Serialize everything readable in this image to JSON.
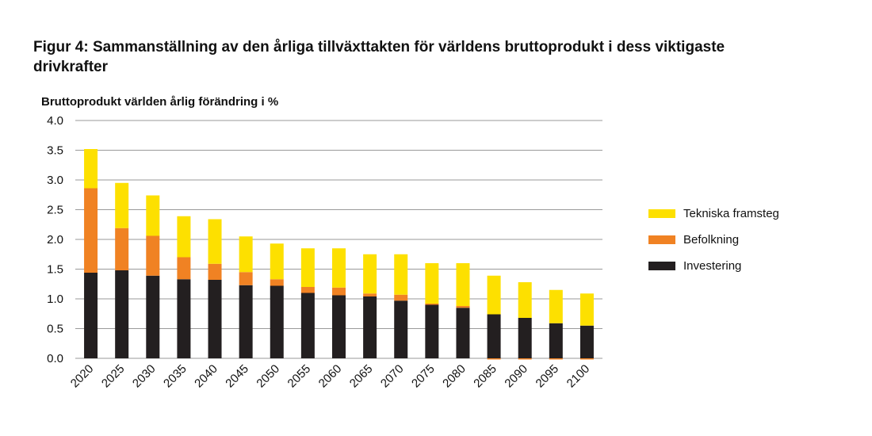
{
  "title": "Figur 4: Sammanställning av den årliga tillväxttakten för världens bruttoprodukt i dess viktigaste drivkrafter",
  "chart_data": {
    "type": "bar",
    "stacked": true,
    "ylabel": "Bruttoprodukt världen årlig förändring i %",
    "xlabel": "",
    "ylim": [
      0,
      4.0
    ],
    "yticks": [
      "0.0",
      "0.5",
      "1.0",
      "1.5",
      "2.0",
      "2.5",
      "3.0",
      "3.5",
      "4.0"
    ],
    "grid": true,
    "legend_position": "right",
    "categories": [
      "2020",
      "2025",
      "2030",
      "2035",
      "2040",
      "2045",
      "2050",
      "2055",
      "2060",
      "2065",
      "2070",
      "2075",
      "2080",
      "2085",
      "2090",
      "2095",
      "2100"
    ],
    "series": [
      {
        "name": "Investering",
        "color": "#231f20",
        "values": [
          1.44,
          1.48,
          1.39,
          1.33,
          1.32,
          1.23,
          1.22,
          1.1,
          1.06,
          1.04,
          0.97,
          0.9,
          0.85,
          0.74,
          0.68,
          0.59,
          0.55
        ]
      },
      {
        "name": "Befolkning",
        "color": "#f08223",
        "values": [
          1.42,
          0.71,
          0.67,
          0.37,
          0.27,
          0.22,
          0.11,
          0.1,
          0.13,
          0.05,
          0.1,
          0.02,
          0.03,
          -0.01,
          -0.01,
          -0.02,
          -0.02
        ]
      },
      {
        "name": "Tekniska framsteg",
        "color": "#fde000",
        "values": [
          0.66,
          0.76,
          0.68,
          0.69,
          0.75,
          0.6,
          0.6,
          0.65,
          0.66,
          0.66,
          0.68,
          0.68,
          0.72,
          0.65,
          0.6,
          0.56,
          0.54
        ]
      }
    ]
  }
}
